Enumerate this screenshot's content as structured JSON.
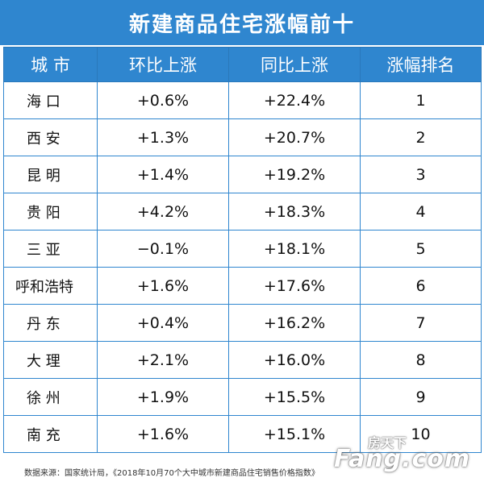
{
  "title": "新建商品住宅涨幅前十",
  "headers": [
    "城 市",
    "环比上涨",
    "同比上涨",
    "涨幅排名"
  ],
  "rows": [
    {
      "city": "海 口",
      "mom": "+0.6%",
      "yoy": "+22.4%",
      "rank": "1"
    },
    {
      "city": "西 安",
      "mom": "+1.3%",
      "yoy": "+20.7%",
      "rank": "2"
    },
    {
      "city": "昆 明",
      "mom": "+1.4%",
      "yoy": "+19.2%",
      "rank": "3"
    },
    {
      "city": "贵 阳",
      "mom": "+4.2%",
      "yoy": "+18.3%",
      "rank": "4"
    },
    {
      "city": "三 亚",
      "mom": "−0.1%",
      "yoy": "+18.1%",
      "rank": "5"
    },
    {
      "city": "呼和浩特",
      "mom": "+1.6%",
      "yoy": "+17.6%",
      "rank": "6"
    },
    {
      "city": "丹 东",
      "mom": "+0.4%",
      "yoy": "+16.2%",
      "rank": "7"
    },
    {
      "city": "大 理",
      "mom": "+2.1%",
      "yoy": "+16.0%",
      "rank": "8"
    },
    {
      "city": "徐 州",
      "mom": "+1.9%",
      "yoy": "+15.5%",
      "rank": "9"
    },
    {
      "city": "南 充",
      "mom": "+1.6%",
      "yoy": "+15.1%",
      "rank": "10"
    }
  ],
  "footnote": "数据来源：国家统计局，《2018年10月70个大中城市新建商品住宅销售价格指数》",
  "watermark": {
    "cn": "房天下",
    "en": "Fang.com"
  },
  "colors": {
    "header_blue": "#2f86cf",
    "border_blue": "#2f86cf"
  }
}
